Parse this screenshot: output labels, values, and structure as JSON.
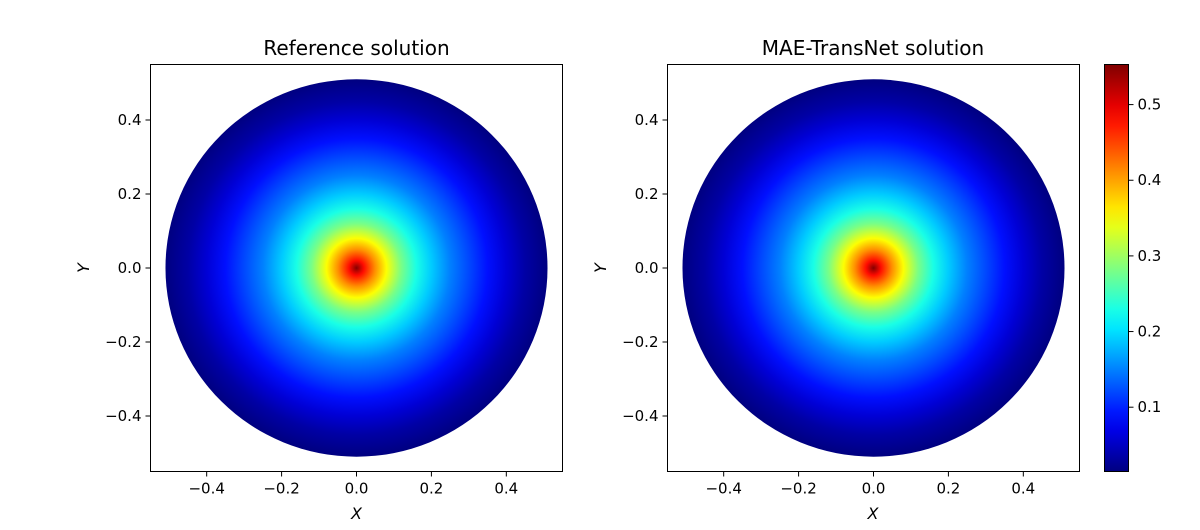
{
  "chart_data": [
    {
      "type": "heatmap",
      "title": "Reference solution",
      "xlabel": "X",
      "ylabel": "Y",
      "xlim": [
        -0.55,
        0.55
      ],
      "ylim": [
        -0.55,
        0.55
      ],
      "xticks": [
        -0.4,
        -0.2,
        0.0,
        0.2,
        0.4
      ],
      "yticks": [
        -0.4,
        -0.2,
        0.0,
        0.2,
        0.4
      ],
      "xtick_labels": [
        "−0.4",
        "−0.2",
        "0.0",
        "0.2",
        "0.4"
      ],
      "ytick_labels": [
        "−0.4",
        "−0.2",
        "0.0",
        "0.2",
        "0.4"
      ],
      "domain": {
        "shape": "disk",
        "center": [
          0,
          0
        ],
        "radius": 0.51
      },
      "field": {
        "description_values": "radial profile",
        "r": [
          0.0,
          0.02,
          0.05,
          0.08,
          0.12,
          0.16,
          0.2,
          0.25,
          0.3,
          0.35,
          0.4,
          0.45,
          0.51
        ],
        "value": [
          0.55,
          0.48,
          0.41,
          0.35,
          0.28,
          0.23,
          0.19,
          0.15,
          0.12,
          0.09,
          0.06,
          0.035,
          0.015
        ]
      },
      "colormap": "jet",
      "grid": false
    },
    {
      "type": "heatmap",
      "title": "MAE-TransNet solution",
      "xlabel": "X",
      "ylabel": "Y",
      "xlim": [
        -0.55,
        0.55
      ],
      "ylim": [
        -0.55,
        0.55
      ],
      "xticks": [
        -0.4,
        -0.2,
        0.0,
        0.2,
        0.4
      ],
      "yticks": [
        -0.4,
        -0.2,
        0.0,
        0.2,
        0.4
      ],
      "xtick_labels": [
        "−0.4",
        "−0.2",
        "0.0",
        "0.2",
        "0.4"
      ],
      "ytick_labels": [
        "−0.4",
        "−0.2",
        "0.0",
        "0.2",
        "0.4"
      ],
      "domain": {
        "shape": "disk",
        "center": [
          0,
          0
        ],
        "radius": 0.51
      },
      "field": {
        "description_values": "radial profile",
        "r": [
          0.0,
          0.02,
          0.05,
          0.08,
          0.12,
          0.16,
          0.2,
          0.25,
          0.3,
          0.35,
          0.4,
          0.45,
          0.51
        ],
        "value": [
          0.55,
          0.48,
          0.41,
          0.35,
          0.28,
          0.23,
          0.19,
          0.15,
          0.12,
          0.09,
          0.06,
          0.035,
          0.015
        ]
      },
      "colormap": "jet",
      "grid": false
    }
  ],
  "colorbar": {
    "range": [
      0.015,
      0.553
    ],
    "ticks": [
      0.1,
      0.2,
      0.3,
      0.4,
      0.5
    ],
    "tick_labels": [
      "0.1",
      "0.2",
      "0.3",
      "0.4",
      "0.5"
    ],
    "colormap": "jet"
  }
}
